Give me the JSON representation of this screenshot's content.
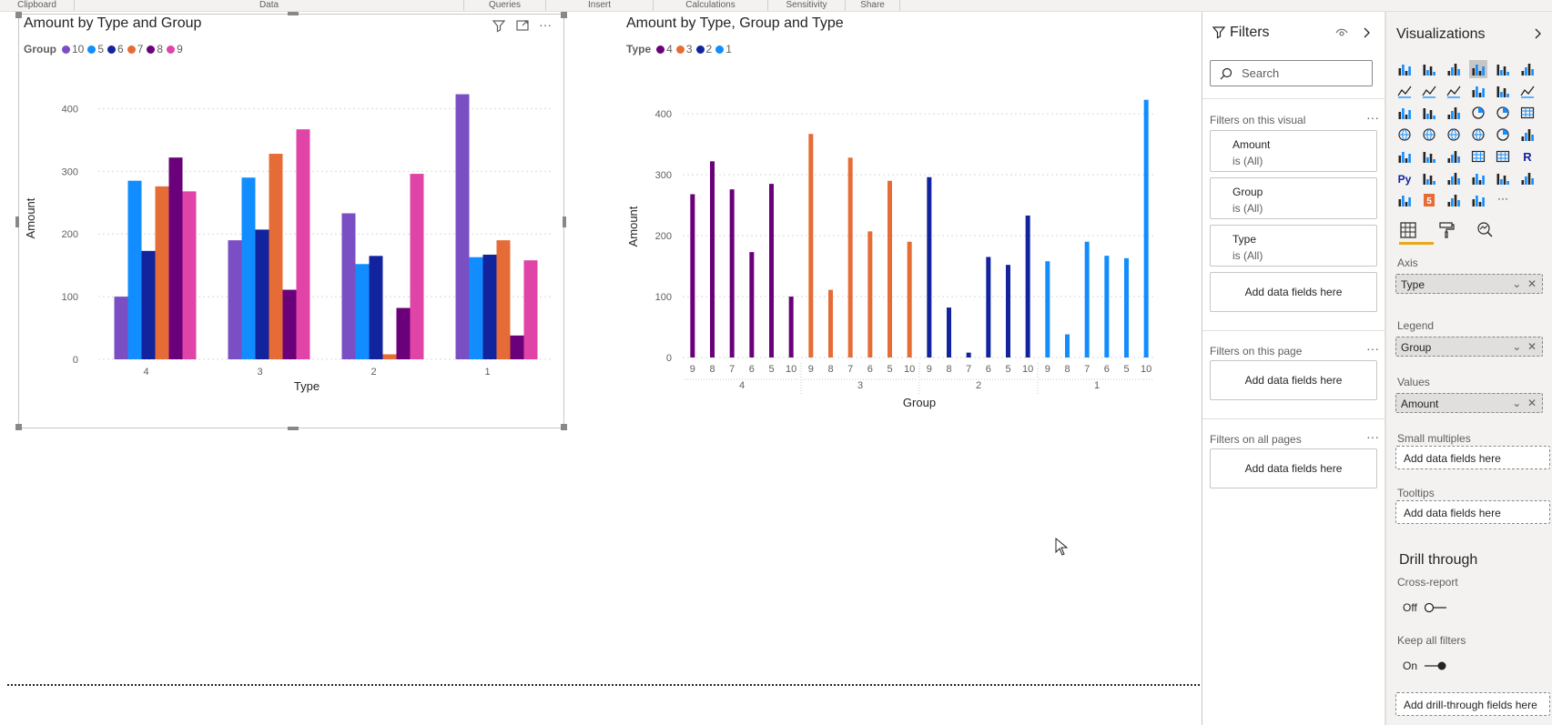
{
  "ribbon": {
    "groups": [
      "Clipboard",
      "Data",
      "Queries",
      "Insert",
      "Calculations",
      "Sensitivity",
      "Share"
    ]
  },
  "visual1": {
    "title": "Amount by Type and Group",
    "legend_title": "Group",
    "legend": [
      {
        "label": "10",
        "color": "#7b4fc4"
      },
      {
        "label": "5",
        "color": "#118dff"
      },
      {
        "label": "6",
        "color": "#12239e"
      },
      {
        "label": "7",
        "color": "#e66c37"
      },
      {
        "label": "8",
        "color": "#6b007b"
      },
      {
        "label": "9",
        "color": "#e044a7"
      }
    ],
    "chart_data": {
      "type": "bar",
      "categories": [
        "4",
        "3",
        "2",
        "1"
      ],
      "series": [
        {
          "name": "10",
          "values": [
            100,
            190,
            233,
            423
          ]
        },
        {
          "name": "5",
          "values": [
            285,
            290,
            152,
            163
          ]
        },
        {
          "name": "6",
          "values": [
            173,
            207,
            165,
            167
          ]
        },
        {
          "name": "7",
          "values": [
            276,
            328,
            8,
            190
          ]
        },
        {
          "name": "8",
          "values": [
            322,
            111,
            82,
            38
          ]
        },
        {
          "name": "9",
          "values": [
            268,
            367,
            296,
            158
          ]
        }
      ],
      "title": "Amount by Type and Group",
      "xlabel": "Type",
      "ylabel": "Amount",
      "ylim": [
        0,
        450
      ],
      "yticks": [
        "0",
        "100",
        "200",
        "300",
        "400"
      ],
      "grid": true,
      "legend_position": "top-left"
    }
  },
  "visual2": {
    "title": "Amount by Type, Group and Type",
    "legend_title": "Type",
    "legend": [
      {
        "label": "4",
        "color": "#6b007b"
      },
      {
        "label": "3",
        "color": "#e66c37"
      },
      {
        "label": "2",
        "color": "#12239e"
      },
      {
        "label": "1",
        "color": "#118dff"
      }
    ],
    "chart_data": {
      "type": "bar",
      "outer_categories": [
        "4",
        "3",
        "2",
        "1"
      ],
      "inner_categories": [
        "9",
        "8",
        "7",
        "6",
        "5",
        "10"
      ],
      "values": [
        [
          268,
          322,
          276,
          173,
          285,
          100
        ],
        [
          367,
          111,
          328,
          207,
          290,
          190
        ],
        [
          296,
          82,
          8,
          165,
          152,
          233
        ],
        [
          158,
          38,
          190,
          167,
          163,
          423
        ]
      ],
      "title": "Amount by Type, Group and Type",
      "xlabel": "Group",
      "ylabel": "Amount",
      "ylim": [
        0,
        430
      ],
      "yticks": [
        "0",
        "100",
        "200",
        "300",
        "400"
      ],
      "grid": true,
      "legend_position": "top-left"
    }
  },
  "filters": {
    "title": "Filters",
    "search_placeholder": "Search",
    "on_visual": "Filters on this visual",
    "cards": [
      {
        "name": "Amount",
        "state": "is (All)"
      },
      {
        "name": "Group",
        "state": "is (All)"
      },
      {
        "name": "Type",
        "state": "is (All)"
      }
    ],
    "add_fields": "Add data fields here",
    "on_page": "Filters on this page",
    "on_all_pages": "Filters on all pages",
    "more": "···"
  },
  "visualizations": {
    "title": "Visualizations",
    "wells": {
      "axis_label": "Axis",
      "axis_value": "Type",
      "legend_label": "Legend",
      "legend_value": "Group",
      "values_label": "Values",
      "values_value": "Amount",
      "small_multiples_label": "Small multiples",
      "tooltips_label": "Tooltips",
      "add_fields": "Add data fields here"
    },
    "drill": {
      "heading": "Drill through",
      "cross_report": "Cross-report",
      "cross_report_state": "Off",
      "keep_all_filters": "Keep all filters",
      "keep_all_filters_state": "On",
      "add_drill": "Add drill-through fields here"
    },
    "icons": [
      "stacked-bar",
      "stacked-column",
      "clustered-bar",
      "clustered-column",
      "100-bar",
      "100-column",
      "line",
      "area",
      "stacked-area",
      "line-column",
      "line-clustered",
      "ribbon",
      "waterfall",
      "funnel",
      "scatter",
      "pie",
      "donut",
      "treemap",
      "map",
      "filled-map",
      "shape-map",
      "azure-map",
      "gauge",
      "card",
      "multi-row-card",
      "kpi",
      "slicer",
      "table",
      "matrix",
      "r-visual",
      "python",
      "key-influencers",
      "decomposition",
      "qa",
      "narrative",
      "paginated",
      "power-apps",
      "html",
      "power-automate",
      "blank",
      "more"
    ]
  }
}
